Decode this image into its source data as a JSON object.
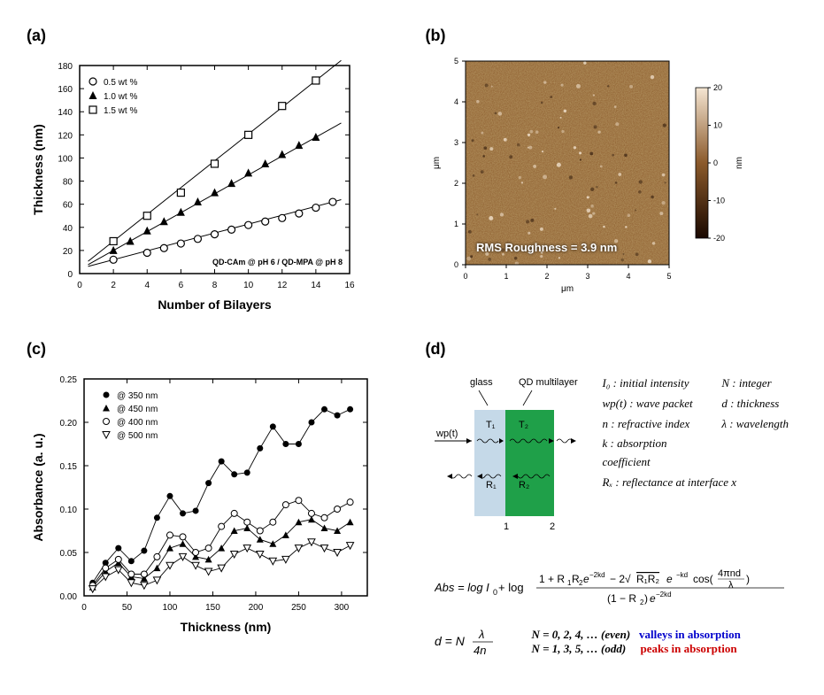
{
  "panelA": {
    "label": "(a)",
    "type": "scatter-line",
    "title_inset": "QD-CAm @ pH 6 / QD-MPA @ pH 8",
    "xlabel": "Number of Bilayers",
    "ylabel": "Thickness (nm)",
    "xlim": [
      0,
      16
    ],
    "xtick_step": 2,
    "ylim": [
      0,
      180
    ],
    "ytick_step": 20,
    "label_fontsize": 14,
    "tick_fontsize": 10,
    "series": [
      {
        "name": "0.5 wt %",
        "marker": "circle-open",
        "color": "#000000",
        "fill": "#ffffff",
        "x": [
          2,
          4,
          5,
          6,
          7,
          8,
          9,
          10,
          11,
          12,
          13,
          14,
          15
        ],
        "y": [
          12,
          18,
          22,
          26,
          30,
          34,
          38,
          42,
          45,
          48,
          52,
          57,
          62
        ]
      },
      {
        "name": "1.0 wt %",
        "marker": "triangle-filled",
        "color": "#000000",
        "fill": "#000000",
        "x": [
          2,
          3,
          4,
          5,
          6,
          7,
          8,
          9,
          10,
          11,
          12,
          13,
          14
        ],
        "y": [
          20,
          28,
          37,
          45,
          53,
          62,
          70,
          78,
          87,
          95,
          103,
          111,
          118
        ]
      },
      {
        "name": "1.5 wt %",
        "marker": "square-open",
        "color": "#000000",
        "fill": "#ffffff",
        "x": [
          2,
          4,
          6,
          8,
          10,
          12,
          14
        ],
        "y": [
          28,
          50,
          70,
          95,
          120,
          145,
          167
        ]
      }
    ],
    "legend_fontsize": 10,
    "background_color": "#ffffff",
    "border_color": "#000000"
  },
  "panelB": {
    "label": "(b)",
    "type": "afm-image",
    "width_um": 5,
    "height_um": 5,
    "xlabel": "μm",
    "ylabel": "μm",
    "colorbar_label": "nm",
    "colorbar_range": [
      -20,
      20
    ],
    "colorbar_ticks": [
      -20,
      -10,
      0,
      10,
      20
    ],
    "rms_text": "RMS Roughness = 3.9 nm",
    "colors": {
      "low": "#1a0800",
      "mid": "#8b5a2b",
      "high": "#f5e6d3"
    }
  },
  "panelC": {
    "label": "(c)",
    "type": "scatter-line",
    "xlabel": "Thickness (nm)",
    "ylabel": "Absorbance (a. u.)",
    "xlim": [
      0,
      330
    ],
    "xtick_step": 50,
    "ylim": [
      0.0,
      0.25
    ],
    "ytick_step": 0.05,
    "label_fontsize": 14,
    "tick_fontsize": 10,
    "series": [
      {
        "name": "@ 350 nm",
        "marker": "circle-filled",
        "color": "#000000",
        "x": [
          10,
          25,
          40,
          55,
          70,
          85,
          100,
          115,
          130,
          145,
          160,
          175,
          190,
          205,
          220,
          235,
          250,
          265,
          280,
          295,
          310
        ],
        "y": [
          0.015,
          0.038,
          0.055,
          0.04,
          0.052,
          0.09,
          0.115,
          0.095,
          0.098,
          0.13,
          0.155,
          0.14,
          0.142,
          0.17,
          0.195,
          0.175,
          0.175,
          0.2,
          0.215,
          0.208,
          0.215
        ]
      },
      {
        "name": "@ 450 nm",
        "marker": "triangle-filled",
        "color": "#000000",
        "x": [
          10,
          25,
          40,
          55,
          70,
          85,
          100,
          115,
          130,
          145,
          160,
          175,
          190,
          205,
          220,
          235,
          250,
          265,
          280,
          295,
          310
        ],
        "y": [
          0.01,
          0.028,
          0.038,
          0.022,
          0.02,
          0.032,
          0.055,
          0.06,
          0.045,
          0.042,
          0.055,
          0.075,
          0.078,
          0.065,
          0.06,
          0.07,
          0.085,
          0.088,
          0.078,
          0.075,
          0.085
        ]
      },
      {
        "name": "@ 400 nm",
        "marker": "circle-open",
        "color": "#000000",
        "x": [
          10,
          25,
          40,
          55,
          70,
          85,
          100,
          115,
          130,
          145,
          160,
          175,
          190,
          205,
          220,
          235,
          250,
          265,
          280,
          295,
          310
        ],
        "y": [
          0.012,
          0.032,
          0.042,
          0.025,
          0.025,
          0.045,
          0.07,
          0.068,
          0.05,
          0.055,
          0.08,
          0.095,
          0.085,
          0.075,
          0.085,
          0.105,
          0.11,
          0.095,
          0.09,
          0.1,
          0.108
        ]
      },
      {
        "name": "@ 500 nm",
        "marker": "triangle-open",
        "color": "#000000",
        "x": [
          10,
          25,
          40,
          55,
          70,
          85,
          100,
          115,
          130,
          145,
          160,
          175,
          190,
          205,
          220,
          235,
          250,
          265,
          280,
          295,
          310
        ],
        "y": [
          0.008,
          0.022,
          0.03,
          0.015,
          0.012,
          0.018,
          0.035,
          0.045,
          0.035,
          0.028,
          0.032,
          0.048,
          0.055,
          0.048,
          0.04,
          0.042,
          0.055,
          0.062,
          0.055,
          0.05,
          0.058
        ]
      }
    ],
    "legend_fontsize": 10,
    "background_color": "#ffffff"
  },
  "panelD": {
    "label": "(d)",
    "type": "schematic",
    "glass_label": "glass",
    "qd_label": "QD multilayer",
    "wp_label": "wp(t)",
    "T1": "T₁",
    "T2": "T₂",
    "R1": "R₁",
    "R2": "R₂",
    "interface_1": "1",
    "interface_2": "2",
    "glass_color": "#c5d9e8",
    "qd_color": "#1fa049",
    "def_I0": "I₀ : initial intensity",
    "def_N": "N : integer",
    "def_wp": "wp(t) : wave packet",
    "def_d": "d : thickness",
    "def_n": "n : refractive index",
    "def_lambda": "λ : wavelength",
    "def_k": "k : absorption coefficient",
    "def_Rx": "Rₓ : reflectance at interface x",
    "eq_abs": "Abs = log I₀ + log [ (1 + R₁R₂e⁻²ᵏᵈ − 2√(R₁R₂) e⁻ᵏᵈ cos(4πnd/λ)) / (1 − R₂)e⁻²ᵏᵈ ]",
    "eq_d": "d = N · λ / 4n",
    "even_line": "N = 0, 2, 4, … (even)",
    "odd_line": "N = 1, 3, 5, … (odd)",
    "valleys_text": "valleys in absorption",
    "peaks_text": "peaks in absorption"
  }
}
